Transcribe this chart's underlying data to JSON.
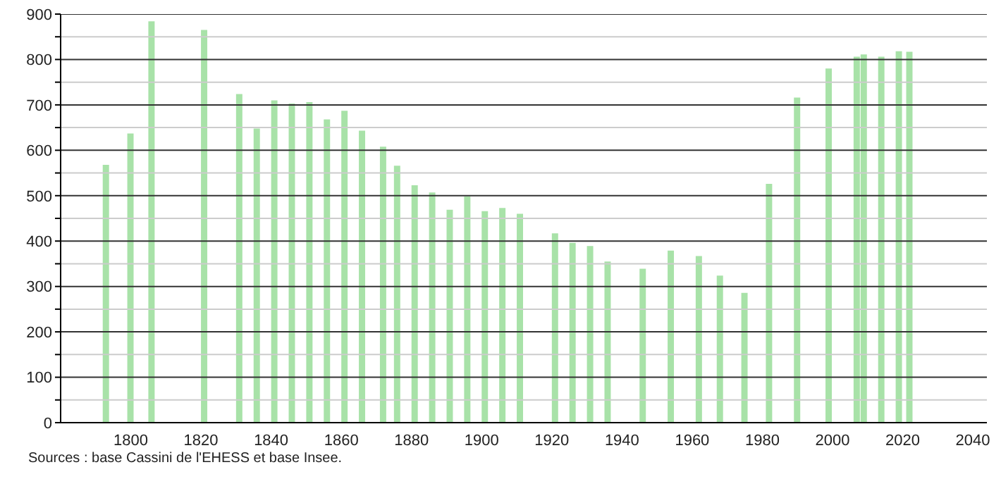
{
  "chart_data": {
    "type": "bar",
    "x": [
      1793,
      1800,
      1806,
      1821,
      1831,
      1836,
      1841,
      1846,
      1851,
      1856,
      1861,
      1866,
      1872,
      1876,
      1881,
      1886,
      1891,
      1896,
      1901,
      1906,
      1911,
      1921,
      1926,
      1931,
      1936,
      1946,
      1954,
      1962,
      1968,
      1975,
      1982,
      1990,
      1999,
      2007,
      2009,
      2014,
      2019,
      2022
    ],
    "values": [
      568,
      637,
      884,
      865,
      724,
      648,
      710,
      703,
      706,
      668,
      687,
      643,
      608,
      566,
      523,
      507,
      469,
      498,
      466,
      473,
      460,
      417,
      396,
      389,
      355,
      339,
      379,
      367,
      324,
      286,
      526,
      716,
      780,
      806,
      811,
      806,
      818,
      817
    ],
    "color": "#a8e2a8",
    "xlim": [
      1780,
      2044
    ],
    "xticks": [
      1800,
      1820,
      1840,
      1860,
      1880,
      1900,
      1920,
      1940,
      1960,
      1980,
      2000,
      2020,
      2040
    ],
    "ylim": [
      0,
      900
    ],
    "yticks": [
      0,
      {
        "value": 50,
        "label": null
      },
      100,
      {
        "value": 150,
        "label": null
      },
      200,
      {
        "value": 250,
        "label": null
      },
      300,
      {
        "value": 350,
        "label": null
      },
      400,
      {
        "value": 450,
        "label": null
      },
      500,
      {
        "value": 550,
        "label": null
      },
      600,
      {
        "value": 650,
        "label": null
      },
      700,
      {
        "value": 750,
        "label": null
      },
      800,
      {
        "value": 850,
        "label": null
      },
      900
    ],
    "grid": "y",
    "annotations": [
      "Sources : base Cassini de l'EHESS et base Insee."
    ]
  }
}
